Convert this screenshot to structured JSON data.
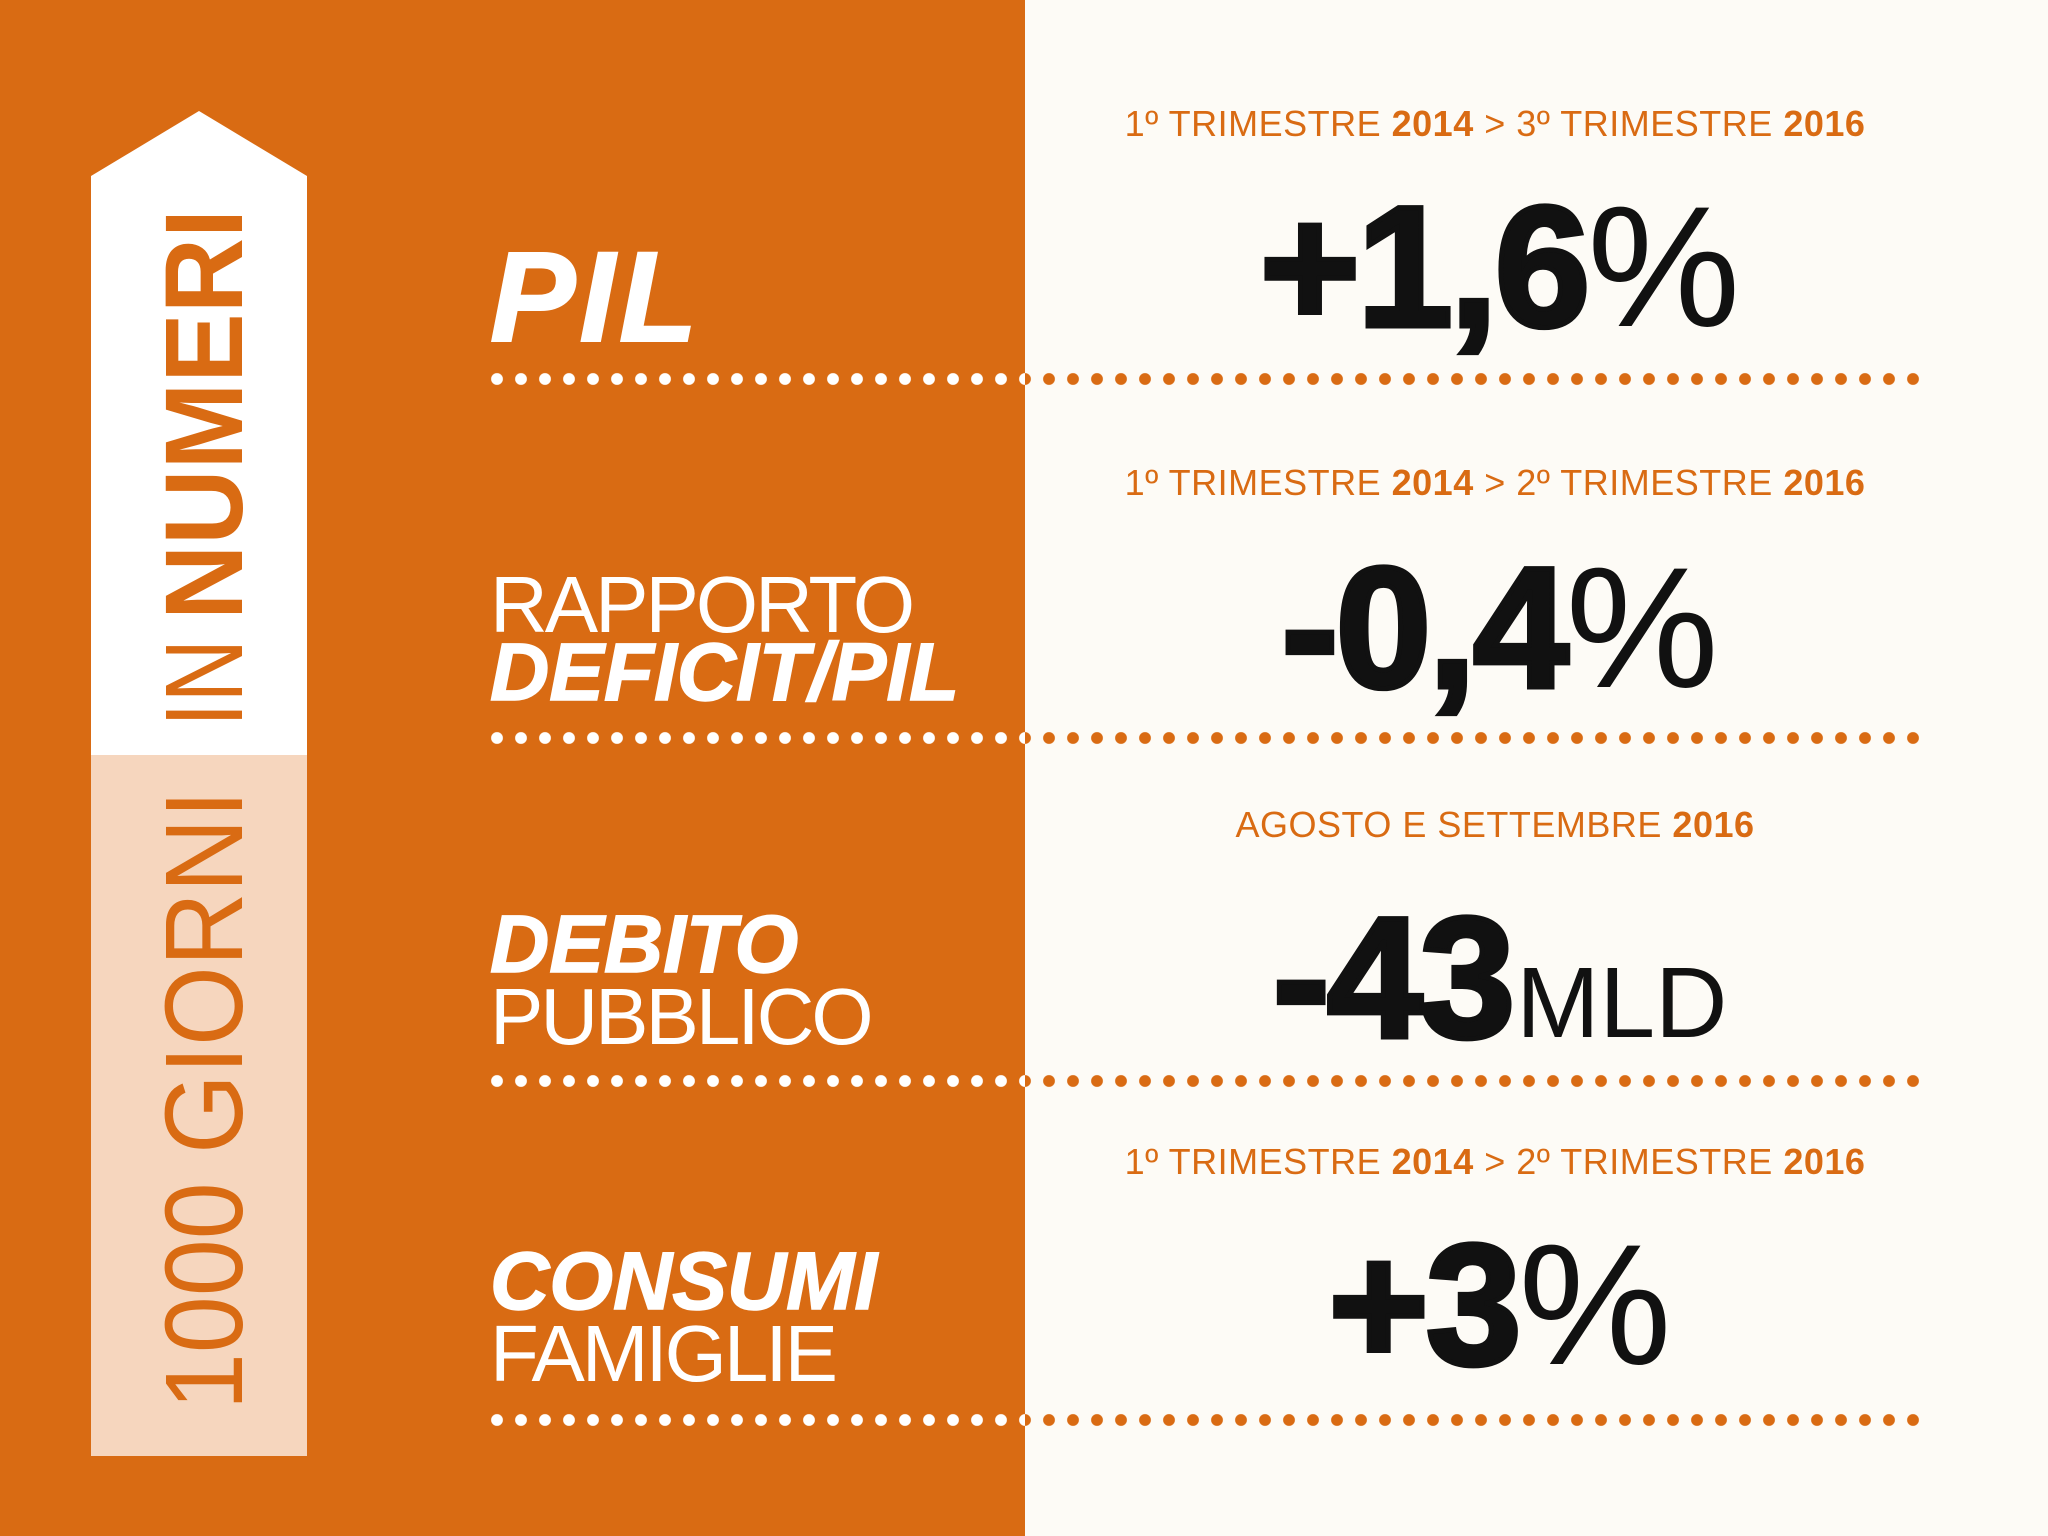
{
  "colors": {
    "panel": "#D96B13",
    "background": "#FDFBF6",
    "banner_white": "#FFFFFF",
    "banner_light": "#F6D6BE",
    "accent_text": "#D96B13",
    "value_text": "#111111",
    "label_text": "#FFFFFF"
  },
  "banner": {
    "light": "1000 GIORNI",
    "middle": "IN",
    "bold": "NUMERI"
  },
  "rows": [
    {
      "period": {
        "start": "1º TRIMESTRE",
        "start_year": "2014",
        "separator": ">",
        "end": "3º TRIMESTRE",
        "end_year": "2016"
      },
      "label": {
        "bold": "PIL"
      },
      "value": {
        "number": "+1,6",
        "unit": "%"
      }
    },
    {
      "period": {
        "start": "1º TRIMESTRE",
        "start_year": "2014",
        "separator": ">",
        "end": "2º TRIMESTRE",
        "end_year": "2016"
      },
      "label": {
        "light": "RAPPORTO",
        "bold": "DEFICIT/PIL"
      },
      "value": {
        "number": "-0,4",
        "unit": "%"
      }
    },
    {
      "period": {
        "start": "AGOSTO E SETTEMBRE",
        "start_year": "2016"
      },
      "label": {
        "bold": "DEBITO",
        "light": "PUBBLICO"
      },
      "value": {
        "number": "-43",
        "unit": "MLD"
      }
    },
    {
      "period": {
        "start": "1º TRIMESTRE",
        "start_year": "2014",
        "separator": ">",
        "end": "2º TRIMESTRE",
        "end_year": "2016"
      },
      "label": {
        "bold": "CONSUMI",
        "light": "FAMIGLIE"
      },
      "value": {
        "number": "+3",
        "unit": "%"
      }
    }
  ]
}
